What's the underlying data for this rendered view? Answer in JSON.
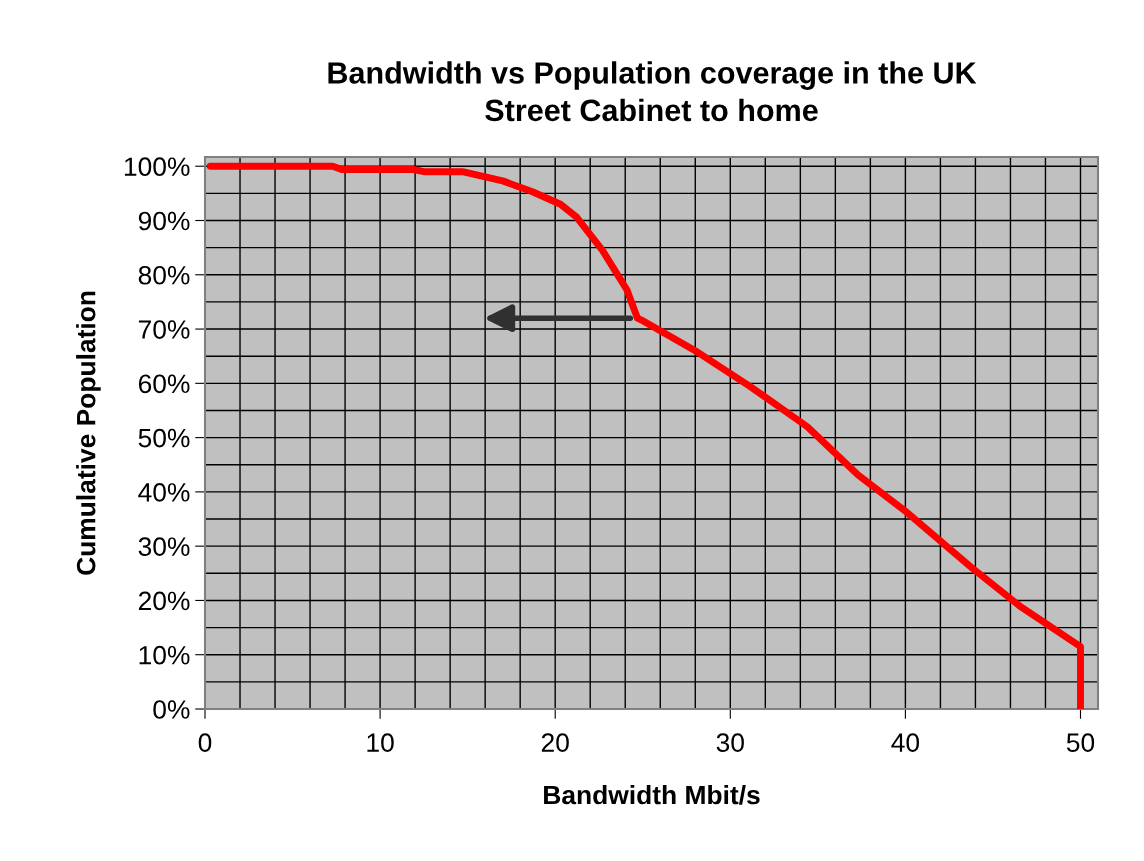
{
  "chart_data": {
    "type": "line",
    "title": "Bandwidth vs Population coverage in the UK\nStreet Cabinet to home",
    "xlabel": "Bandwidth Mbit/s",
    "ylabel": "Cumulative Population",
    "x": [
      0.3,
      7.3,
      7.8,
      11.9,
      12.5,
      14.7,
      17.0,
      18.7,
      20.3,
      21.2,
      22.7,
      24.1,
      24.7,
      24.9,
      28.1,
      31.1,
      34.4,
      37.3,
      40.1,
      43.8,
      46.6,
      50.0,
      50.0
    ],
    "series": [
      {
        "color": "#ff0000",
        "values": [
          100,
          100,
          99.4,
          99.4,
          99,
          99,
          97.3,
          95.3,
          93,
          90.7,
          84.5,
          77.2,
          72,
          71.7,
          65.8,
          59.5,
          52,
          43.1,
          36.2,
          26,
          18.8,
          11.5,
          0
        ]
      }
    ],
    "xlim": [
      0,
      51
    ],
    "xticks": [
      0,
      {
        "value": 2,
        "label": null
      },
      {
        "value": 4,
        "label": null
      },
      {
        "value": 6,
        "label": null
      },
      {
        "value": 8,
        "label": null
      },
      10,
      {
        "value": 12,
        "label": null
      },
      {
        "value": 14,
        "label": null
      },
      {
        "value": 16,
        "label": null
      },
      {
        "value": 18,
        "label": null
      },
      20,
      {
        "value": 22,
        "label": null
      },
      {
        "value": 24,
        "label": null
      },
      {
        "value": 26,
        "label": null
      },
      {
        "value": 28,
        "label": null
      },
      30,
      {
        "value": 32,
        "label": null
      },
      {
        "value": 34,
        "label": null
      },
      {
        "value": 36,
        "label": null
      },
      {
        "value": 38,
        "label": null
      },
      40,
      {
        "value": 42,
        "label": null
      },
      {
        "value": 44,
        "label": null
      },
      {
        "value": 46,
        "label": null
      },
      {
        "value": 48,
        "label": null
      },
      50
    ],
    "ylim": [
      0,
      101.7
    ],
    "yticks": [
      {
        "value": 0,
        "label": "0%"
      },
      {
        "value": 5,
        "label": null
      },
      {
        "value": 10,
        "label": "10%"
      },
      {
        "value": 15,
        "label": null
      },
      {
        "value": 20,
        "label": "20%"
      },
      {
        "value": 25,
        "label": null
      },
      {
        "value": 30,
        "label": "30%"
      },
      {
        "value": 35,
        "label": null
      },
      {
        "value": 40,
        "label": "40%"
      },
      {
        "value": 45,
        "label": null
      },
      {
        "value": 50,
        "label": "50%"
      },
      {
        "value": 55,
        "label": null
      },
      {
        "value": 60,
        "label": "60%"
      },
      {
        "value": 65,
        "label": null
      },
      {
        "value": 70,
        "label": "70%"
      },
      {
        "value": 75,
        "label": null
      },
      {
        "value": 80,
        "label": "80%"
      },
      {
        "value": 85,
        "label": null
      },
      {
        "value": 90,
        "label": "90%"
      },
      {
        "value": 95,
        "label": null
      },
      {
        "value": 100,
        "label": "100%"
      }
    ],
    "grid": true,
    "legend": false,
    "marker": "none",
    "line_style": "solid"
  }
}
